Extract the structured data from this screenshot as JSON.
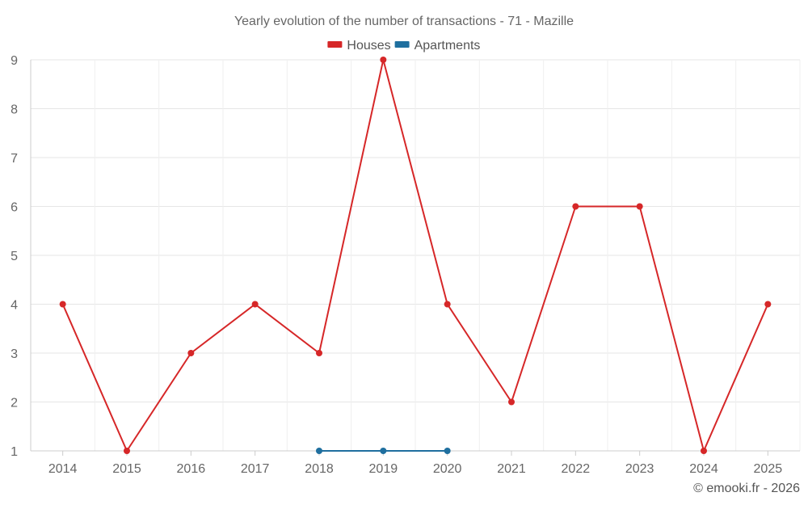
{
  "chart_data": {
    "type": "line",
    "title": "Yearly evolution of the number of transactions - 71 - Mazille",
    "categories": [
      "2014",
      "2015",
      "2016",
      "2017",
      "2018",
      "2019",
      "2020",
      "2021",
      "2022",
      "2023",
      "2024",
      "2025"
    ],
    "series": [
      {
        "name": "Houses",
        "color": "#d62728",
        "values": [
          4,
          1,
          3,
          4,
          3,
          9,
          4,
          2,
          6,
          6,
          1,
          4
        ]
      },
      {
        "name": "Apartments",
        "color": "#1f6f9f",
        "values": [
          null,
          null,
          null,
          null,
          1,
          1,
          1,
          null,
          null,
          null,
          null,
          null
        ]
      }
    ],
    "ylim": [
      1,
      9
    ],
    "yticks": [
      1,
      2,
      3,
      4,
      5,
      6,
      7,
      8,
      9
    ],
    "xlabel": "",
    "ylabel": "",
    "grid": true,
    "legend": "top-center"
  },
  "credit": "© emooki.fr - 2026"
}
